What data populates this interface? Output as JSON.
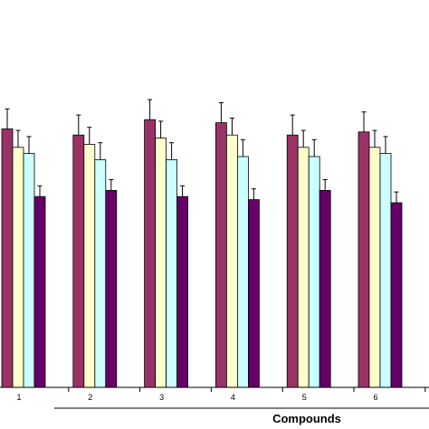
{
  "chart_data": {
    "type": "bar",
    "title": "",
    "xlabel": "Compounds",
    "ylabel": "",
    "categories": [
      "1",
      "2",
      "3",
      "4",
      "5",
      "6"
    ],
    "ylim": [
      0,
      100
    ],
    "grid": false,
    "error_bars": true,
    "series": [
      {
        "color": "#993366",
        "values": [
          84,
          82,
          87,
          86,
          82,
          83
        ],
        "errors": [
          6.5,
          6.5,
          6.5,
          6.5,
          6.5,
          6.5
        ]
      },
      {
        "color": "#FFFFCC",
        "values": [
          78,
          79,
          81,
          82,
          78,
          78
        ],
        "errors": [
          5.5,
          5.5,
          5.5,
          5.5,
          5.5,
          5.5
        ]
      },
      {
        "color": "#CCFFFF",
        "values": [
          76,
          74,
          74,
          75,
          75,
          76
        ],
        "errors": [
          5.5,
          5.5,
          5.5,
          5.5,
          5.5,
          5.5
        ]
      },
      {
        "color": "#660066",
        "values": [
          62,
          64,
          62,
          61,
          64,
          60
        ],
        "errors": [
          3.5,
          3.5,
          3.5,
          3.5,
          3.5,
          3.5
        ]
      }
    ]
  }
}
